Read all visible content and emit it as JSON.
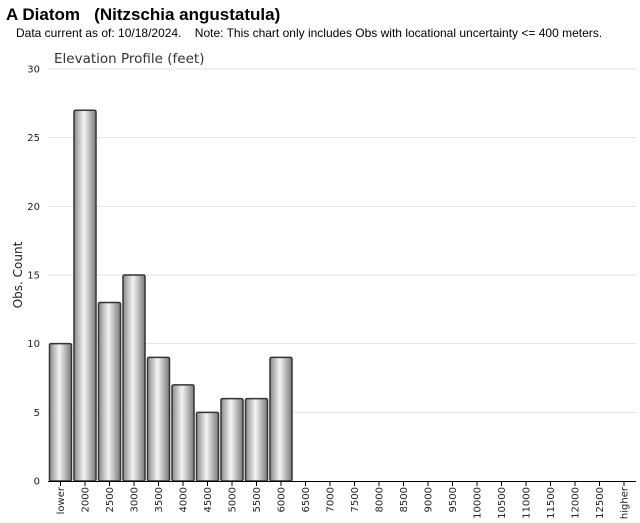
{
  "header": {
    "title": "A Diatom   (Nitzschia angustatula)",
    "note": "Data current as of: 10/18/2024.    Note: This chart only includes Obs with locational uncertainty <= 400 meters."
  },
  "chart_data": {
    "type": "bar",
    "title": "Elevation Profile (feet)",
    "xlabel": "",
    "ylabel": "Obs. Count",
    "ylim": [
      0,
      30
    ],
    "yticks": [
      0,
      5,
      10,
      15,
      20,
      25,
      30
    ],
    "grid": true,
    "categories": [
      "lower",
      "2000",
      "2500",
      "3000",
      "3500",
      "4000",
      "4500",
      "5000",
      "5500",
      "6000",
      "6500",
      "7000",
      "7500",
      "8000",
      "8500",
      "9000",
      "9500",
      "10000",
      "10500",
      "11000",
      "11500",
      "12000",
      "12500",
      "higher"
    ],
    "values": [
      10,
      27,
      13,
      15,
      9,
      7,
      5,
      6,
      6,
      9,
      0,
      0,
      0,
      0,
      0,
      0,
      0,
      0,
      0,
      0,
      0,
      0,
      0,
      0
    ],
    "colors": {
      "bar_light": "#f4f4f4",
      "bar_dark": "#8a8a8a",
      "bar_stroke": "#333333",
      "grid": "#e2e2e2",
      "axis": "#000000"
    }
  }
}
